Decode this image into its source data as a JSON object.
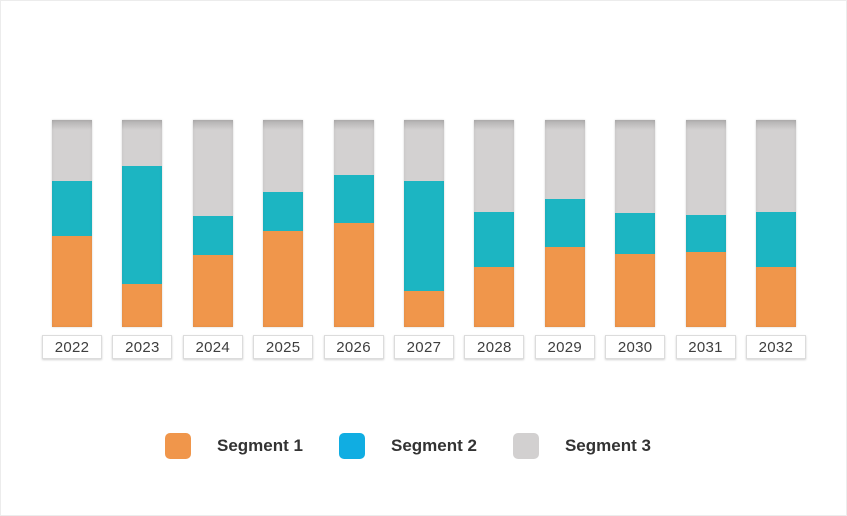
{
  "chart_data": {
    "type": "bar",
    "variant": "stacked-percent-column",
    "title": "",
    "xlabel": "",
    "ylabel": "",
    "grid": false,
    "legend_position": "bottom",
    "categories": [
      "2022",
      "2023",
      "2024",
      "2025",
      "2026",
      "2027",
      "2028",
      "2029",
      "2030",
      "2031",
      "2032"
    ],
    "series": [
      {
        "name": "Segment 1",
        "color": "#F0964B",
        "legend_color": "#F0964B",
        "values": [
          44,
          21,
          35,
          46.5,
          50,
          17.5,
          29,
          38.5,
          35.5,
          36,
          29
        ]
      },
      {
        "name": "Segment 2",
        "color": "#1CB5C2",
        "legend_color": "#10ADE2",
        "values": [
          26.5,
          57,
          18.5,
          18.5,
          23.5,
          53,
          26.5,
          23.5,
          19.5,
          18,
          26.5
        ]
      },
      {
        "name": "Segment 3",
        "color": "#D3D1D1",
        "legend_color": "#D2D0D0",
        "values": [
          29.5,
          22,
          46.5,
          35,
          26.5,
          29.5,
          44.5,
          38,
          45,
          46,
          44.5
        ]
      }
    ],
    "value_unit": "percent",
    "ylim": [
      0,
      100
    ],
    "bar_order_top_to_bottom": [
      "Segment 3",
      "Segment 2",
      "Segment 1"
    ]
  },
  "styles": {
    "background": "#ffffff",
    "card_border": "#ececec",
    "label_box_border": "#dcdcdc",
    "label_text_color": "#3e3e3e",
    "legend_text_color": "#333333"
  }
}
